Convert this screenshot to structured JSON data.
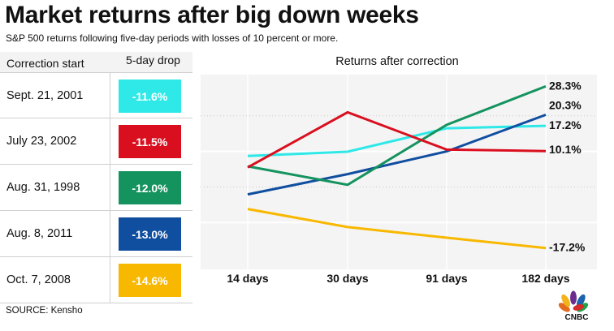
{
  "header": {
    "title": "Market returns after big down weeks",
    "subtitle": "S&P 500 returns following five-day periods with losses of 10 percent or more."
  },
  "table": {
    "col1_header": "Correction start",
    "col2_header": "5-day drop",
    "rows": [
      {
        "date": "Sept. 21, 2001",
        "drop": "-11.6%",
        "color": "#2fe8e8"
      },
      {
        "date": "July 23, 2002",
        "drop": "-11.5%",
        "color": "#d90f1f"
      },
      {
        "date": "Aug. 31, 1998",
        "drop": "-12.0%",
        "color": "#14935e"
      },
      {
        "date": "Aug. 8, 2011",
        "drop": "-13.0%",
        "color": "#104ea0"
      },
      {
        "date": "Oct. 7, 2008",
        "drop": "-14.6%",
        "color": "#f8b800"
      }
    ]
  },
  "chart_data": {
    "type": "line",
    "title": "Returns after correction",
    "categories": [
      "14 days",
      "30 days",
      "91 days",
      "182 days"
    ],
    "ylim": [
      -20,
      30
    ],
    "series": [
      {
        "label": "Sept. 21, 2001",
        "color": "#2fe8e8",
        "values": [
          8.7,
          9.9,
          16.5,
          17.2
        ],
        "end_label": "17.2%"
      },
      {
        "label": "July 23, 2002",
        "color": "#d90f1f",
        "values": [
          5.5,
          21.0,
          10.5,
          10.1
        ],
        "end_label": "10.1%"
      },
      {
        "label": "Aug. 31, 1998",
        "color": "#14935e",
        "values": [
          5.8,
          0.6,
          17.5,
          28.3
        ],
        "end_label": "28.3%"
      },
      {
        "label": "Aug. 8, 2011",
        "color": "#104ea0",
        "values": [
          -2.1,
          3.6,
          10.0,
          20.3
        ],
        "end_label": "20.3%"
      },
      {
        "label": "Oct. 7, 2008",
        "color": "#f8b800",
        "values": [
          -6.2,
          -11.3,
          -14.3,
          -17.2
        ],
        "end_label": "-17.2%"
      }
    ]
  },
  "footer": {
    "source": "SOURCE: Kensho",
    "logo_text": "CNBC"
  }
}
